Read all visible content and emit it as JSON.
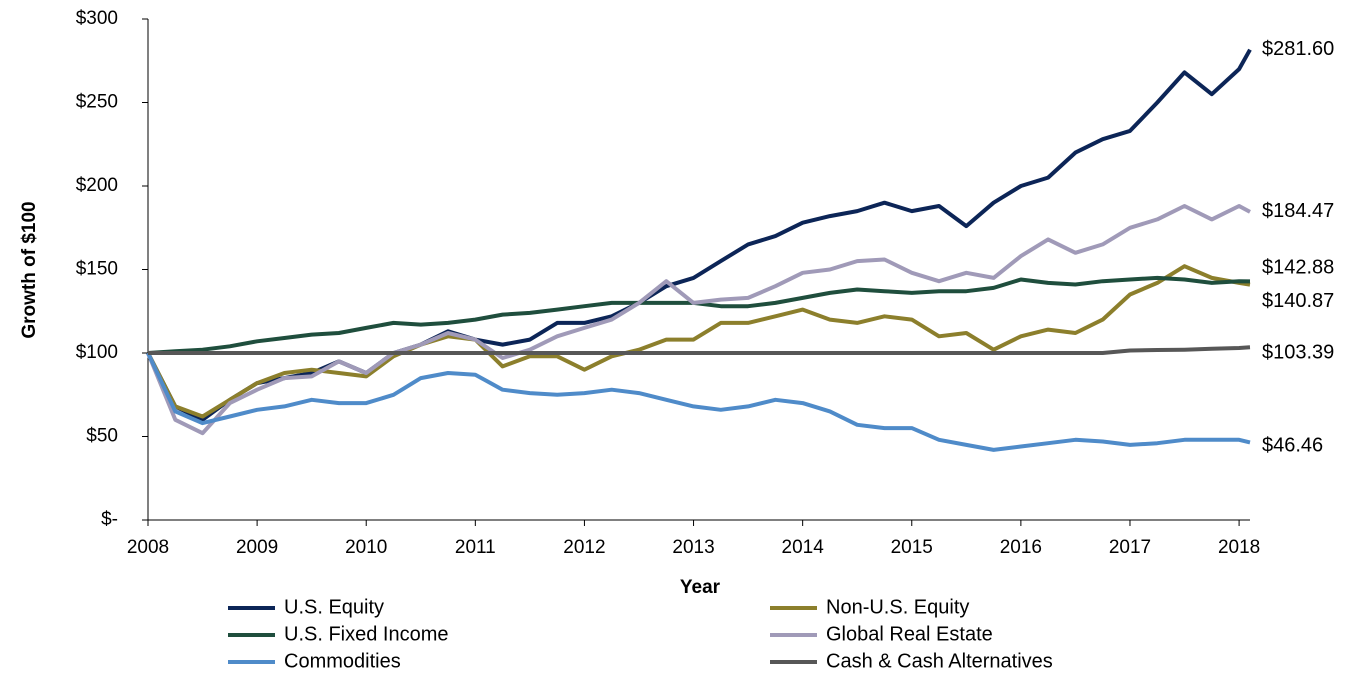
{
  "chart_data": {
    "type": "line",
    "y_label": "Growth of $100",
    "x_label": "Year",
    "x": [
      2008,
      2008.25,
      2008.5,
      2008.75,
      2009,
      2009.25,
      2009.5,
      2009.75,
      2010,
      2010.25,
      2010.5,
      2010.75,
      2011,
      2011.25,
      2011.5,
      2011.75,
      2012,
      2012.25,
      2012.5,
      2012.75,
      2013,
      2013.25,
      2013.5,
      2013.75,
      2014,
      2014.25,
      2014.5,
      2014.75,
      2015,
      2015.25,
      2015.5,
      2015.75,
      2016,
      2016.25,
      2016.5,
      2016.75,
      2017,
      2017.25,
      2017.5,
      2017.75,
      2018,
      2018.1
    ],
    "xlim": [
      2008,
      2018.1
    ],
    "xticks": [
      2008,
      2009,
      2010,
      2011,
      2012,
      2013,
      2014,
      2015,
      2016,
      2017,
      2018
    ],
    "ylim": [
      0,
      300
    ],
    "yticks": [
      {
        "value": 0,
        "label": "$-"
      },
      {
        "value": 50,
        "label": "$50"
      },
      {
        "value": 100,
        "label": "$100"
      },
      {
        "value": 150,
        "label": "$150"
      },
      {
        "value": 200,
        "label": "$200"
      },
      {
        "value": 250,
        "label": "$250"
      },
      {
        "value": 300,
        "label": "$300"
      }
    ],
    "series": [
      {
        "name": "U.S. Equity",
        "color": "#0c2557",
        "end_label": "$281.60",
        "values": [
          100,
          68,
          60,
          72,
          82,
          85,
          88,
          95,
          88,
          100,
          105,
          113,
          108,
          105,
          108,
          118,
          118,
          122,
          130,
          140,
          145,
          155,
          165,
          170,
          178,
          182,
          185,
          190,
          185,
          188,
          176,
          190,
          200,
          205,
          220,
          228,
          233,
          250,
          268,
          255,
          270,
          281.6
        ]
      },
      {
        "name": "Non-U.S. Equity",
        "color": "#8c7f2c",
        "end_label": "$140.87",
        "values": [
          100,
          68,
          62,
          72,
          82,
          88,
          90,
          88,
          86,
          98,
          105,
          110,
          108,
          92,
          98,
          98,
          90,
          98,
          102,
          108,
          108,
          118,
          118,
          122,
          126,
          120,
          118,
          122,
          120,
          110,
          112,
          102,
          110,
          114,
          112,
          120,
          135,
          142,
          152,
          145,
          142,
          140.87
        ]
      },
      {
        "name": "U.S. Fixed Income",
        "color": "#1f4e3d",
        "end_label": "$142.88",
        "values": [
          100,
          101,
          102,
          104,
          107,
          109,
          111,
          112,
          115,
          118,
          117,
          118,
          120,
          123,
          124,
          126,
          128,
          130,
          130,
          130,
          130,
          128,
          128,
          130,
          133,
          136,
          138,
          137,
          136,
          137,
          137,
          139,
          144,
          142,
          141,
          143,
          144,
          145,
          144,
          142,
          143,
          142.88
        ]
      },
      {
        "name": "Global Real Estate",
        "color": "#a09ab8",
        "end_label": "$184.47",
        "values": [
          100,
          60,
          52,
          70,
          78,
          85,
          86,
          95,
          88,
          100,
          105,
          112,
          108,
          97,
          102,
          110,
          115,
          120,
          130,
          143,
          130,
          132,
          133,
          140,
          148,
          150,
          155,
          156,
          148,
          143,
          148,
          145,
          158,
          168,
          160,
          165,
          175,
          180,
          188,
          180,
          188,
          184.47
        ]
      },
      {
        "name": "Commodities",
        "color": "#4f8bc9",
        "end_label": "$46.46",
        "values": [
          100,
          65,
          58,
          62,
          66,
          68,
          72,
          70,
          70,
          75,
          85,
          88,
          87,
          78,
          76,
          75,
          76,
          78,
          76,
          72,
          68,
          66,
          68,
          72,
          70,
          65,
          57,
          55,
          55,
          48,
          45,
          42,
          44,
          46,
          48,
          47,
          45,
          46,
          48,
          48,
          48,
          46.46
        ]
      },
      {
        "name": "Cash & Cash Alternatives",
        "color": "#575757",
        "end_label": "$103.39",
        "values": [
          100,
          100,
          100,
          100,
          100,
          100,
          100,
          100,
          100,
          100,
          100,
          100,
          100,
          100,
          100,
          100,
          100,
          100,
          100,
          100,
          100,
          100,
          100,
          100,
          100,
          100,
          100,
          100,
          100,
          100,
          100,
          100,
          100,
          100,
          100,
          100,
          101.5,
          101.8,
          102,
          102.5,
          103,
          103.39
        ]
      }
    ]
  }
}
